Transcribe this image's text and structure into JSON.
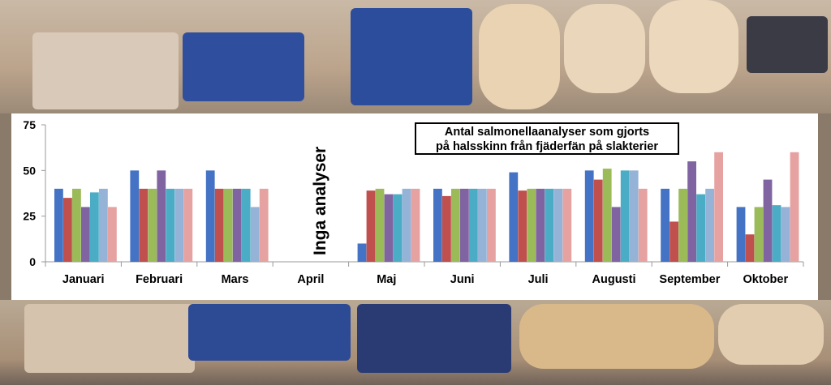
{
  "chart_data": {
    "type": "bar",
    "title_lines": [
      "Antal salmonellaanalyser  som gjorts",
      "på halsskinn  från fjäderfän på slakterier"
    ],
    "annotation": "Inga analyser",
    "xlabel": "",
    "ylabel": "",
    "ylim": [
      0,
      75
    ],
    "yticks": [
      "0",
      "25",
      "50",
      "75"
    ],
    "grid": false,
    "legend": "none",
    "categories": [
      "Januari",
      "Februari",
      "Mars",
      "April",
      "Maj",
      "Juni",
      "Juli",
      "Augusti",
      "September",
      "Oktober"
    ],
    "colors": [
      "#4472c4",
      "#c0504d",
      "#9bbb59",
      "#8064a2",
      "#4bacc6",
      "#95b3d7",
      "#e6a1a1"
    ],
    "series": [
      {
        "values": [
          40,
          50,
          50,
          null,
          10,
          40,
          49,
          50,
          40,
          30
        ]
      },
      {
        "values": [
          35,
          40,
          40,
          null,
          39,
          36,
          39,
          45,
          22,
          15
        ]
      },
      {
        "values": [
          40,
          40,
          40,
          null,
          40,
          40,
          40,
          51,
          40,
          30
        ]
      },
      {
        "values": [
          30,
          50,
          40,
          null,
          37,
          40,
          40,
          30,
          55,
          45
        ]
      },
      {
        "values": [
          38,
          40,
          40,
          null,
          37,
          40,
          40,
          50,
          37,
          31
        ]
      },
      {
        "values": [
          40,
          40,
          30,
          null,
          40,
          40,
          40,
          50,
          40,
          30
        ]
      },
      {
        "values": [
          30,
          40,
          40,
          null,
          40,
          40,
          40,
          40,
          60,
          60
        ]
      }
    ]
  }
}
